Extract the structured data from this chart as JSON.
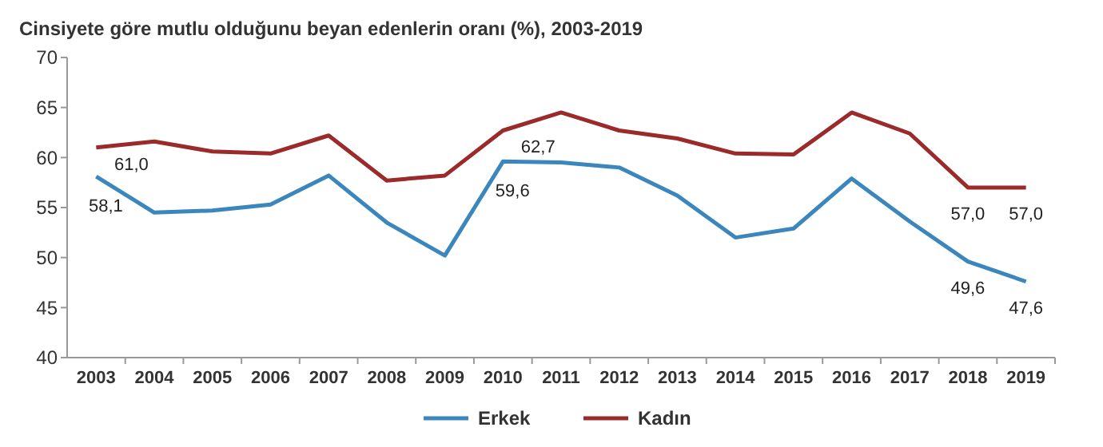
{
  "chart_data": {
    "type": "line",
    "title": "Cinsiyete göre mutlu olduğunu beyan edenlerin oranı (%), 2003-2019",
    "categories": [
      "2003",
      "2004",
      "2005",
      "2006",
      "2007",
      "2008",
      "2009",
      "2010",
      "2011",
      "2012",
      "2013",
      "2014",
      "2015",
      "2016",
      "2017",
      "2018",
      "2019"
    ],
    "series": [
      {
        "name": "Erkek",
        "color": "#3b87bd",
        "values": [
          58.1,
          54.5,
          54.7,
          55.3,
          58.2,
          53.5,
          50.2,
          59.6,
          59.5,
          59.0,
          56.2,
          52.0,
          52.9,
          57.9,
          53.6,
          49.6,
          47.6
        ],
        "value_labels": [
          "58,1",
          null,
          null,
          null,
          null,
          null,
          null,
          "59,6",
          null,
          null,
          null,
          null,
          null,
          null,
          null,
          "49,6",
          "47,6"
        ]
      },
      {
        "name": "Kadın",
        "color": "#9b2a2a",
        "values": [
          61.0,
          61.6,
          60.6,
          60.4,
          62.2,
          57.7,
          58.2,
          62.7,
          64.5,
          62.7,
          61.9,
          60.4,
          60.3,
          64.5,
          62.4,
          57.0,
          57.0
        ],
        "value_labels": [
          "61,0",
          null,
          null,
          null,
          null,
          null,
          null,
          "62,7",
          null,
          null,
          null,
          null,
          null,
          null,
          null,
          "57,0",
          "57,0"
        ]
      }
    ],
    "ylim": [
      40,
      70
    ],
    "yticks": [
      40,
      45,
      50,
      55,
      60,
      65,
      70
    ],
    "grid": false,
    "legend": "bottom",
    "line_style": "solid"
  }
}
